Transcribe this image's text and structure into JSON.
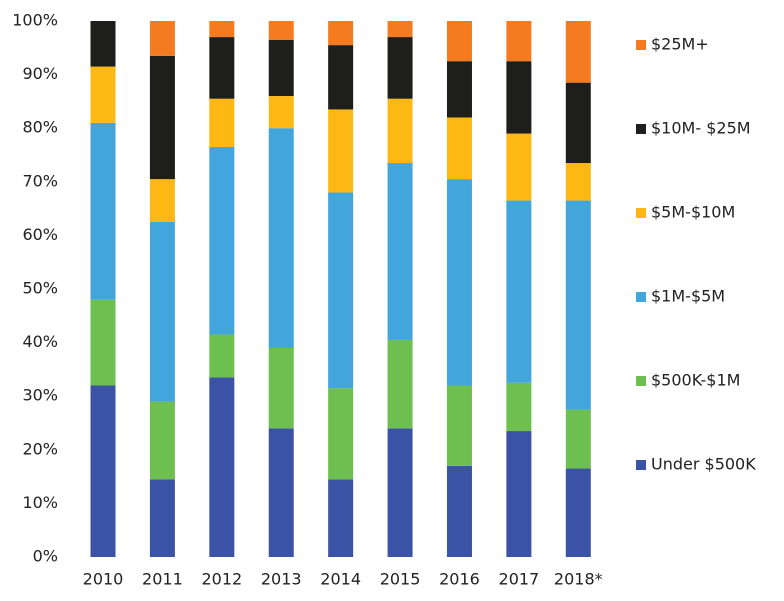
{
  "chart_data": {
    "type": "stacked_bar",
    "categories": [
      "2010",
      "2011",
      "2012",
      "2013",
      "2014",
      "2015",
      "2016",
      "2017",
      "2018*"
    ],
    "series": [
      {
        "name": "Under $500K",
        "color": "#3b53a4",
        "values": [
          32,
          14.5,
          33.5,
          24,
          14.5,
          24,
          17,
          23.5,
          16.5
        ]
      },
      {
        "name": "$500K-$1M",
        "color": "#6dbf4f",
        "values": [
          16,
          14.5,
          8,
          15,
          17,
          16.5,
          15,
          9,
          11
        ]
      },
      {
        "name": "$1M-$5M",
        "color": "#42a5dc",
        "values": [
          33,
          33.5,
          35,
          41,
          36.5,
          33,
          38.5,
          34,
          39
        ]
      },
      {
        "name": "$5M-$10M",
        "color": "#fdb813",
        "values": [
          10.5,
          8,
          9,
          6,
          15.5,
          12,
          11.5,
          12.5,
          7
        ]
      },
      {
        "name": "$10M- $25M",
        "color": "#1e1e1c",
        "values": [
          8.5,
          23,
          11.5,
          10.5,
          12,
          11.5,
          10.5,
          13.5,
          15
        ]
      },
      {
        "name": "$25M+",
        "color": "#f47b20",
        "values": [
          0,
          6.5,
          3,
          3.5,
          4.5,
          3,
          7.5,
          7.5,
          11.5
        ]
      }
    ],
    "ylim": [
      0,
      100
    ],
    "yticks": [
      {
        "value": 0,
        "label": "0%"
      },
      {
        "value": 10,
        "label": "10%"
      },
      {
        "value": 20,
        "label": "20%"
      },
      {
        "value": 30,
        "label": "30%"
      },
      {
        "value": 40,
        "label": "40%"
      },
      {
        "value": 50,
        "label": "50%"
      },
      {
        "value": 60,
        "label": "60%"
      },
      {
        "value": 70,
        "label": "70%"
      },
      {
        "value": 80,
        "label": "80%"
      },
      {
        "value": 90,
        "label": "90%"
      },
      {
        "value": 100,
        "label": "100%"
      }
    ],
    "legend": "right"
  }
}
